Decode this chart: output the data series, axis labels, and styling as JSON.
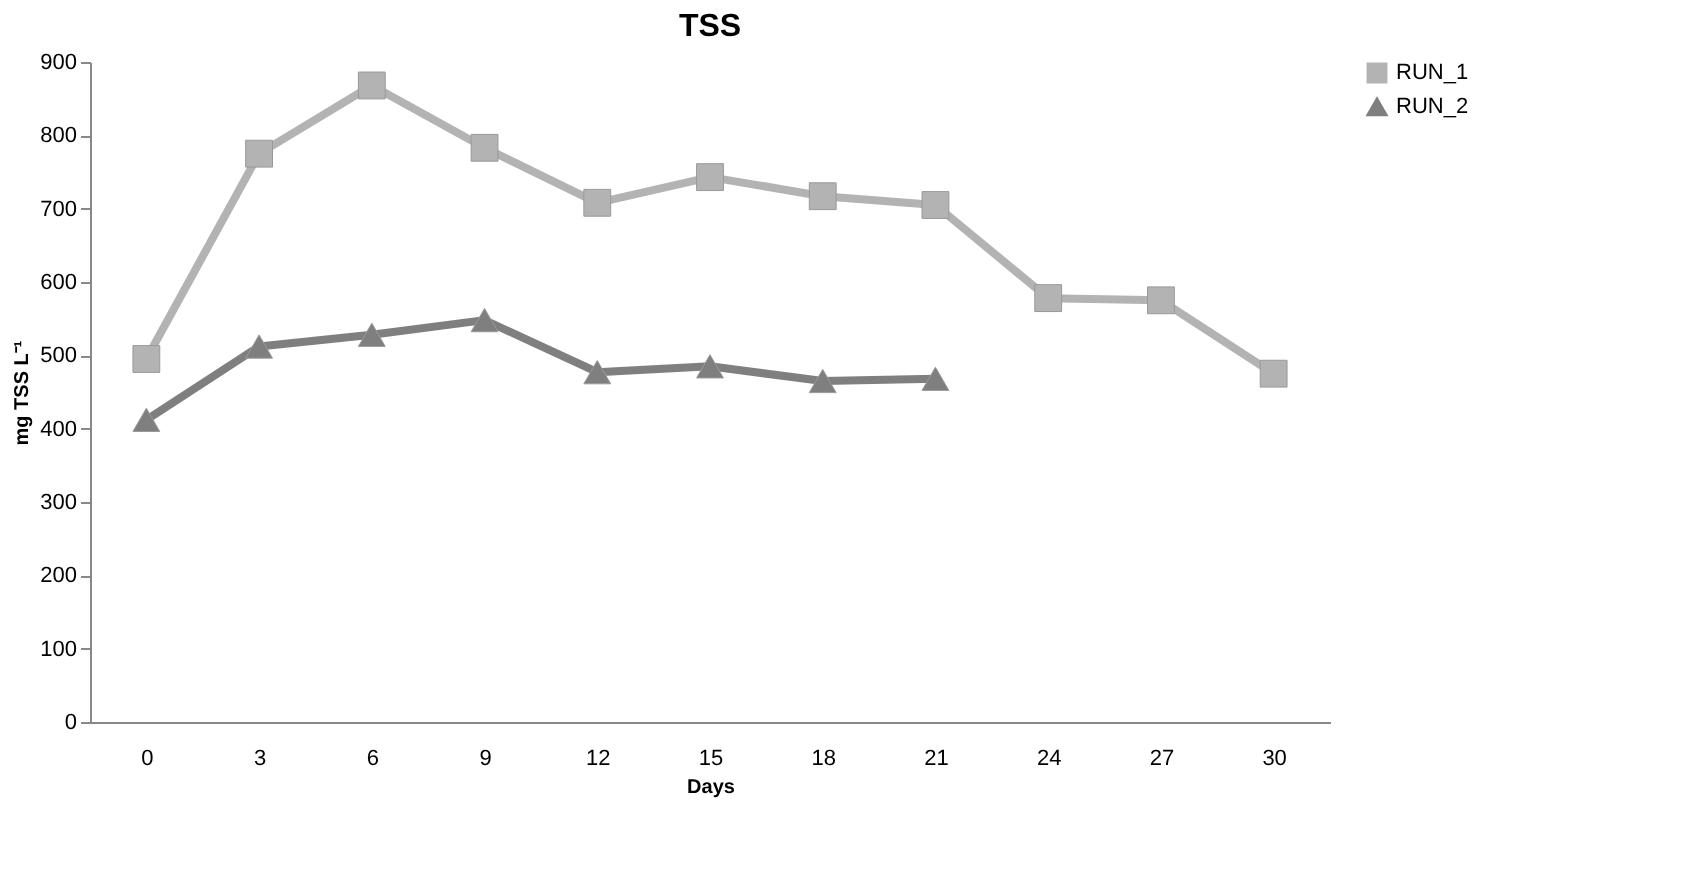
{
  "chart_data": {
    "type": "line",
    "title": "TSS",
    "xlabel": "Days",
    "ylabel": "mg TSS L⁻¹",
    "categories": [
      "0",
      "3",
      "6",
      "9",
      "12",
      "15",
      "18",
      "21",
      "24",
      "27",
      "30"
    ],
    "series": [
      {
        "name": "RUN_1",
        "color": "#b3b3b3",
        "marker": "square",
        "values": [
          495,
          775,
          868,
          783,
          708,
          743,
          717,
          705,
          578,
          575,
          475
        ]
      },
      {
        "name": "RUN_2",
        "color": "#7f7f7f",
        "marker": "triangle",
        "values": [
          412,
          512,
          528,
          548,
          477,
          485,
          465,
          468,
          null,
          null,
          null
        ]
      }
    ],
    "ylim": [
      0,
      900
    ],
    "yticks": [
      0,
      100,
      200,
      300,
      400,
      500,
      600,
      700,
      800,
      900
    ],
    "grid": false,
    "legend": "right",
    "line_style": "solid"
  }
}
